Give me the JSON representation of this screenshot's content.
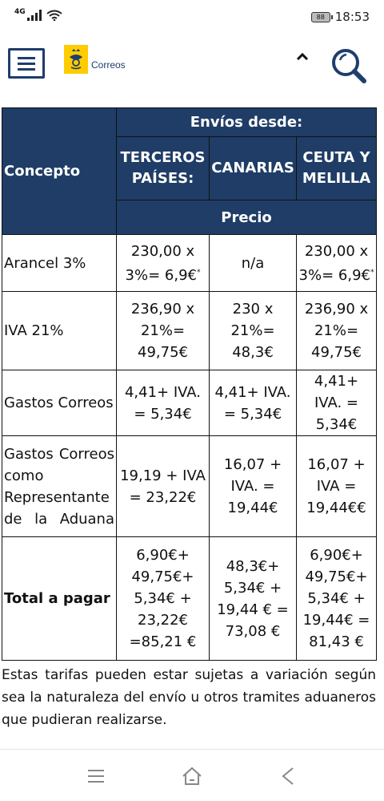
{
  "status_bar": {
    "network": "4G",
    "battery": "88",
    "time": "18:53"
  },
  "header": {
    "logo_text": "Correos",
    "colors": {
      "primary": "#1f3d6d",
      "logo_yellow": "#ffcc00"
    }
  },
  "table": {
    "header": {
      "concepto": "Concepto",
      "envios_desde": "Envíos desde:",
      "columns": [
        {
          "line1": "TERCEROS",
          "line2": "PAÍSES:"
        },
        {
          "line1": "CANARIAS",
          "line2": ""
        },
        {
          "line1": "CEUTA Y",
          "line2": "MELILLA"
        }
      ],
      "precio": "Precio"
    },
    "rows": [
      {
        "concept": "Arancel 3%",
        "values": [
          "230,00 x 3%= 6,9€",
          "n/a",
          "230,00 x 3%= 6,9€"
        ],
        "note_mark": "*"
      },
      {
        "concept": "IVA 21%",
        "values": [
          "236,90 x 21%= 49,75€",
          "230 x 21%= 48,3€",
          "236,90 x 21%= 49,75€"
        ]
      },
      {
        "concept": "Gastos Correos",
        "values": [
          "4,41+ IVA. = 5,34€",
          "4,41+ IVA. = 5,34€",
          "4,41+ IVA. = 5,34€"
        ]
      },
      {
        "concept": "Gastos Correos como Representante de la Aduana",
        "values": [
          "19,19 + IVA = 23,22€",
          "16,07 + IVA. = 19,44€",
          "16,07 + IVA = 19,44€€"
        ]
      },
      {
        "concept": "Total a pagar",
        "values": [
          "6,90€+ 49,75€+ 5,34€ + 23,22€ =85,21 €",
          "48,3€+ 5,34€ + 19,44 € = 73,08 €",
          "6,90€+ 49,75€+ 5,34€ + 19,44€ = 81,43 €"
        ]
      }
    ]
  },
  "footnote": "Estas tarifas pueden estar sujetas a variación según sea la naturaleza del envío u otros tramites aduaneros que pudieran realizarse.",
  "icons": {
    "menu": "hamburger-menu-icon",
    "search": "search-icon",
    "collapse": "chevron-up-icon",
    "nav_menu": "nav-menu-icon",
    "nav_home": "home-icon",
    "nav_back": "back-icon"
  }
}
